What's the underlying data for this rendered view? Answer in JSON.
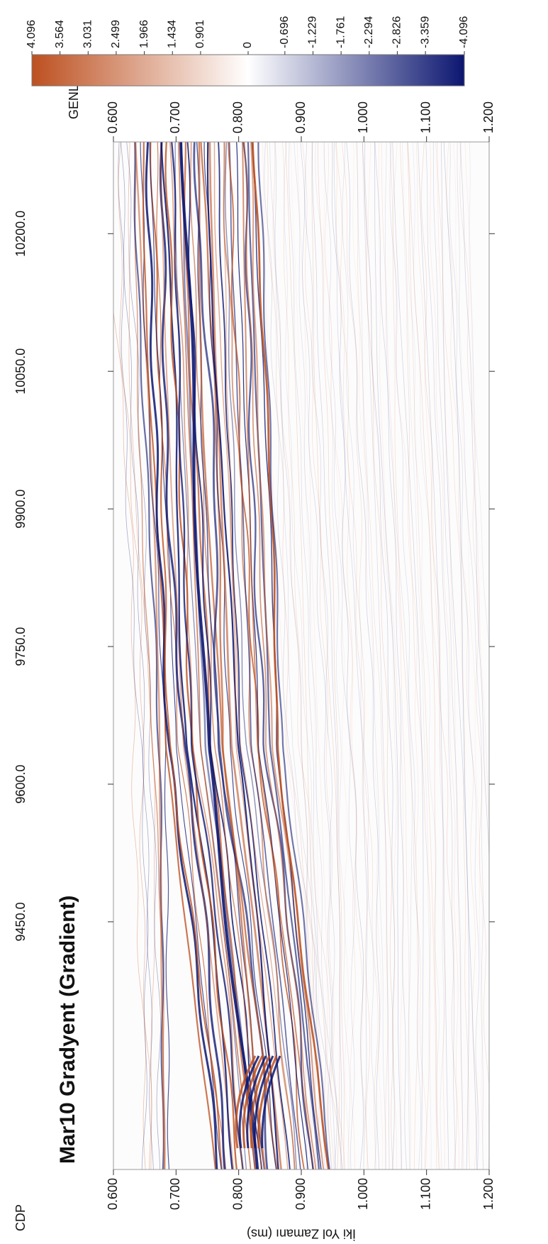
{
  "chart_data": {
    "type": "seismic",
    "title": "Mar10 Gradyent (Gradient)",
    "x_label": "CDP",
    "y_label": "İki Yol Zamanı (ms)",
    "xlim": [
      9180,
      10300
    ],
    "xticks": [
      {
        "value": 9450,
        "label": "9450.0"
      },
      {
        "value": 9600,
        "label": "9600.0"
      },
      {
        "value": 9750,
        "label": "9750.0"
      },
      {
        "value": 9900,
        "label": "9900.0"
      },
      {
        "value": 10050,
        "label": "10050.0"
      },
      {
        "value": 10200,
        "label": "10200.0"
      }
    ],
    "ylim": [
      0.6,
      1.2
    ],
    "y_inverted": true,
    "yticks": [
      {
        "value": 0.6,
        "label": "0.600"
      },
      {
        "value": 0.7,
        "label": "0.700"
      },
      {
        "value": 0.8,
        "label": "0.800"
      },
      {
        "value": 0.9,
        "label": "0.900"
      },
      {
        "value": 1.0,
        "label": "1.000"
      },
      {
        "value": 1.1,
        "label": "1.100"
      },
      {
        "value": 1.2,
        "label": "1.200"
      }
    ],
    "colorbar": {
      "title": "GENLİK",
      "lim": [
        -4.096,
        4.096
      ],
      "ticks": [
        -4.096,
        -3.359,
        -2.826,
        -2.294,
        -1.761,
        -1.229,
        -0.696,
        0,
        0.901,
        1.434,
        1.966,
        2.499,
        3.031,
        3.564,
        4.096
      ],
      "colors": [
        "#0c1670",
        "#ffffff",
        "#bd5020"
      ]
    }
  }
}
